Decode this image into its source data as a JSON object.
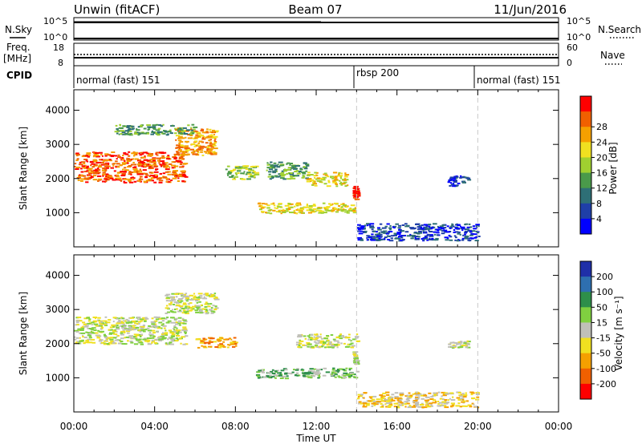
{
  "header": {
    "station": "Unwin (fitACF)",
    "beam": "Beam 07",
    "date": "11/Jun/2016"
  },
  "aux_panels": {
    "nsky": {
      "label": "N.Sky",
      "ticks": [
        "10^5",
        "10^0"
      ],
      "right_ticks": [
        "10^5",
        "10^0"
      ],
      "right_label": "N.Search"
    },
    "freq": {
      "label": "Freq.",
      "unit": "[MHz]",
      "ticks": [
        "18",
        "8"
      ],
      "right_ticks": [
        "60",
        "0"
      ],
      "right_label": "Nave"
    },
    "cpid": {
      "label": "CPID",
      "segments": [
        "normal (fast) 151",
        "rbsp 200",
        "normal (fast) 151"
      ]
    }
  },
  "chart_data": [
    {
      "type": "heatmap",
      "name": "power",
      "xlabel": "Time UT",
      "ylabel": "Slant Range [km]",
      "ylim": [
        0,
        4600
      ],
      "xlim": [
        0,
        24
      ],
      "yticks": [
        "1000",
        "2000",
        "3000",
        "4000"
      ],
      "colorbar": {
        "label": "Power [dB]",
        "ticks": [
          "4",
          "8",
          "12",
          "16",
          "20",
          "24",
          "28"
        ],
        "colors": [
          "#0000ff",
          "#1f3fa8",
          "#2e6f76",
          "#4a9a4a",
          "#a0d030",
          "#f0e020",
          "#f5a000",
          "#f06000",
          "#ff0000"
        ]
      },
      "echo_regions": [
        {
          "t": [
            0.0,
            5.5
          ],
          "r": [
            1900,
            2800
          ],
          "level": 7
        },
        {
          "t": [
            5.0,
            7.0
          ],
          "r": [
            2700,
            3500
          ],
          "level": 6
        },
        {
          "t": [
            2.0,
            6.0
          ],
          "r": [
            3300,
            3600
          ],
          "level": 3
        },
        {
          "t": [
            7.5,
            9.0
          ],
          "r": [
            2000,
            2400
          ],
          "level": 4
        },
        {
          "t": [
            9.5,
            11.5
          ],
          "r": [
            2000,
            2500
          ],
          "level": 3
        },
        {
          "t": [
            11.5,
            13.5
          ],
          "r": [
            1800,
            2200
          ],
          "level": 5
        },
        {
          "t": [
            9.0,
            14.0
          ],
          "r": [
            1000,
            1300
          ],
          "level": 5
        },
        {
          "t": [
            13.8,
            14.0
          ],
          "r": [
            1400,
            1800
          ],
          "level": 8
        },
        {
          "t": [
            14.0,
            20.0
          ],
          "r": [
            200,
            700
          ],
          "level": 1
        },
        {
          "t": [
            18.5,
            19.5
          ],
          "r": [
            1800,
            2100
          ],
          "level": 1
        }
      ]
    },
    {
      "type": "heatmap",
      "name": "velocity",
      "xlabel": "Time UT",
      "ylabel": "Slant Range [km]",
      "ylim": [
        0,
        4600
      ],
      "xlim": [
        0,
        24
      ],
      "yticks": [
        "1000",
        "2000",
        "3000",
        "4000"
      ],
      "xticks": [
        "00:00",
        "04:00",
        "08:00",
        "12:00",
        "16:00",
        "20:00",
        "00:00"
      ],
      "colorbar": {
        "label": "Velocity [m s⁻¹]",
        "ticks": [
          "200",
          "100",
          "50",
          "15",
          "-15",
          "-50",
          "-100",
          "-200"
        ],
        "colors": [
          "#1f2fa8",
          "#2e6fb0",
          "#2e8f4a",
          "#80d040",
          "#c0c0b8",
          "#f0e020",
          "#f5a000",
          "#f06000",
          "#ff0000"
        ]
      },
      "echo_regions": [
        {
          "t": [
            0.0,
            5.5
          ],
          "r": [
            2000,
            2800
          ],
          "level": 4
        },
        {
          "t": [
            4.5,
            7.0
          ],
          "r": [
            2900,
            3500
          ],
          "level": 4
        },
        {
          "t": [
            6.0,
            8.0
          ],
          "r": [
            1900,
            2200
          ],
          "level": 6
        },
        {
          "t": [
            9.0,
            14.0
          ],
          "r": [
            1000,
            1300
          ],
          "level": 3
        },
        {
          "t": [
            11.0,
            14.0
          ],
          "r": [
            1900,
            2300
          ],
          "level": 4
        },
        {
          "t": [
            13.8,
            14.0
          ],
          "r": [
            1400,
            1800
          ],
          "level": 4
        },
        {
          "t": [
            14.0,
            20.0
          ],
          "r": [
            150,
            600
          ],
          "level": 5
        },
        {
          "t": [
            18.5,
            19.5
          ],
          "r": [
            1900,
            2100
          ],
          "level": 4
        }
      ]
    }
  ]
}
